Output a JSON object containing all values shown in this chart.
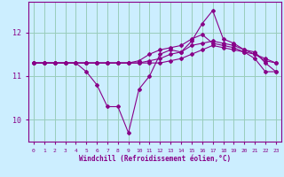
{
  "xlabel": "Windchill (Refroidissement éolien,°C)",
  "bg_color": "#cceeff",
  "line_color": "#880088",
  "grid_color": "#99ccbb",
  "hours": [
    0,
    1,
    2,
    3,
    4,
    5,
    6,
    7,
    8,
    9,
    10,
    11,
    12,
    13,
    14,
    15,
    16,
    17,
    18,
    19,
    20,
    21,
    22,
    23
  ],
  "series1": [
    11.3,
    11.3,
    11.3,
    11.3,
    11.3,
    11.1,
    10.8,
    10.3,
    10.3,
    9.7,
    10.7,
    11.0,
    11.5,
    11.6,
    11.55,
    11.8,
    12.2,
    12.5,
    11.85,
    11.75,
    11.6,
    11.55,
    11.3,
    11.1
  ],
  "series2": [
    11.3,
    11.3,
    11.3,
    11.3,
    11.3,
    11.3,
    11.3,
    11.3,
    11.3,
    11.3,
    11.3,
    11.35,
    11.4,
    11.5,
    11.55,
    11.7,
    11.75,
    11.8,
    11.75,
    11.7,
    11.6,
    11.5,
    11.4,
    11.3
  ],
  "series3": [
    11.3,
    11.3,
    11.3,
    11.3,
    11.3,
    11.3,
    11.3,
    11.3,
    11.3,
    11.3,
    11.35,
    11.5,
    11.6,
    11.65,
    11.7,
    11.85,
    11.95,
    11.75,
    11.7,
    11.65,
    11.55,
    11.4,
    11.1,
    11.1
  ],
  "series4": [
    11.3,
    11.3,
    11.3,
    11.3,
    11.3,
    11.3,
    11.3,
    11.3,
    11.3,
    11.3,
    11.3,
    11.3,
    11.3,
    11.35,
    11.4,
    11.5,
    11.6,
    11.7,
    11.65,
    11.6,
    11.55,
    11.5,
    11.35,
    11.3
  ],
  "ylim": [
    9.5,
    12.7
  ],
  "yticks": [
    10,
    11,
    12
  ],
  "xticks": [
    0,
    1,
    2,
    3,
    4,
    5,
    6,
    7,
    8,
    9,
    10,
    11,
    12,
    13,
    14,
    15,
    16,
    17,
    18,
    19,
    20,
    21,
    22,
    23
  ]
}
